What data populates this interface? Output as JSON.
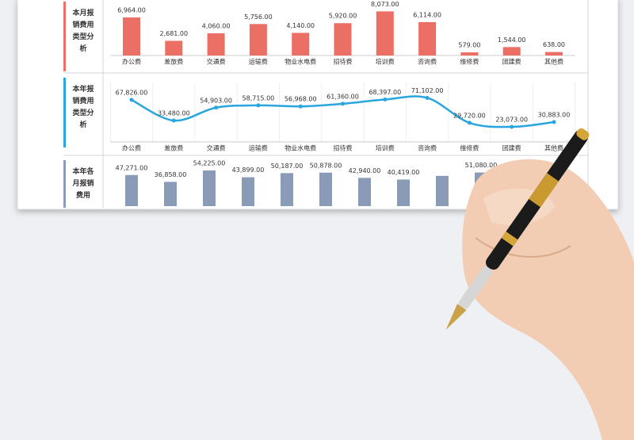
{
  "chart_data": [
    {
      "type": "bar",
      "title": "本月报销费用类型分析",
      "color": "#ec6f66",
      "label_color": "#333333",
      "accent": "#ec6f66",
      "categories": [
        "办公费",
        "差旅费",
        "交通费",
        "运输费",
        "物业水电费",
        "招待费",
        "培训费",
        "咨询费",
        "维修费",
        "团建费",
        "其他费"
      ],
      "values": [
        6964,
        2681,
        4060,
        5756,
        4140,
        5920,
        8073,
        6114,
        579,
        1544,
        638
      ],
      "value_labels": [
        "6,964.00",
        "2,681.00",
        "4,060.00",
        "5,756.00",
        "4,140.00",
        "5,920.00",
        "8,073.00",
        "6,114.00",
        "579.00",
        "1,544.00",
        "638.00"
      ]
    },
    {
      "type": "line",
      "title": "本年报销费用类型分析",
      "color": "#2aa5de",
      "label_color": "#333333",
      "accent": "#2aa5de",
      "categories": [
        "办公费",
        "差旅费",
        "交通费",
        "运输费",
        "物业水电费",
        "招待费",
        "培训费",
        "咨询费",
        "维修费",
        "团建费",
        "其他费"
      ],
      "values": [
        67826,
        33480,
        54903,
        58715,
        56968,
        61360,
        68397,
        71102,
        29720,
        23073,
        30883
      ],
      "value_labels": [
        "67,826.00",
        "33,480.00",
        "54,903.00",
        "58,715.00",
        "56,968.00",
        "61,360.00",
        "68,397.00",
        "71,102.00",
        "29,720.00",
        "23,073.00",
        "30,883.00"
      ]
    },
    {
      "type": "bar",
      "title": "本年各月报销费用",
      "color": "#8a9bb7",
      "label_color": "#2e4a7a",
      "accent": "#8a9bb7",
      "values": [
        47271,
        36858,
        54225,
        43899,
        50187,
        50878,
        42940,
        40419,
        46000,
        51080
      ],
      "value_labels": [
        "47,271.00",
        "36,858.00",
        "54,225.00",
        "43,899.00",
        "50,187.00",
        "50,878.00",
        "42,940.00",
        "40,419.00",
        null,
        "51,080.00"
      ]
    }
  ]
}
